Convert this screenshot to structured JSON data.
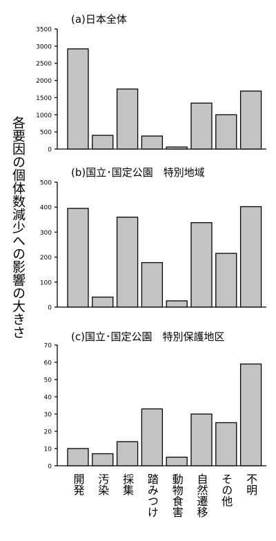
{
  "chart_data": {
    "ylabel": "各要因の個体数減少への影響の大きさ",
    "categories": [
      "開発",
      "汚染",
      "採集",
      "踏みつけ",
      "動物食害",
      "自然遷移",
      "その他",
      "不明"
    ],
    "panels": [
      {
        "type": "bar",
        "title": "(a)日本全体",
        "ylim": [
          0,
          3500
        ],
        "yticks": [
          0,
          500,
          1000,
          1500,
          2000,
          2500,
          3000,
          3500
        ],
        "values": [
          2920,
          400,
          1750,
          380,
          60,
          1340,
          1000,
          1690
        ]
      },
      {
        "type": "bar",
        "title": "(b)国立･国定公園　特別地域",
        "ylim": [
          0,
          500
        ],
        "yticks": [
          0,
          100,
          200,
          300,
          400,
          500
        ],
        "values": [
          395,
          40,
          360,
          178,
          25,
          338,
          215,
          402
        ]
      },
      {
        "type": "bar",
        "title": "(c)国立･国定公園　特別保護地区",
        "ylim": [
          0,
          70
        ],
        "yticks": [
          0,
          10,
          20,
          30,
          40,
          50,
          60,
          70
        ],
        "values": [
          10,
          7,
          14,
          33,
          5,
          30,
          25,
          59
        ]
      }
    ]
  }
}
